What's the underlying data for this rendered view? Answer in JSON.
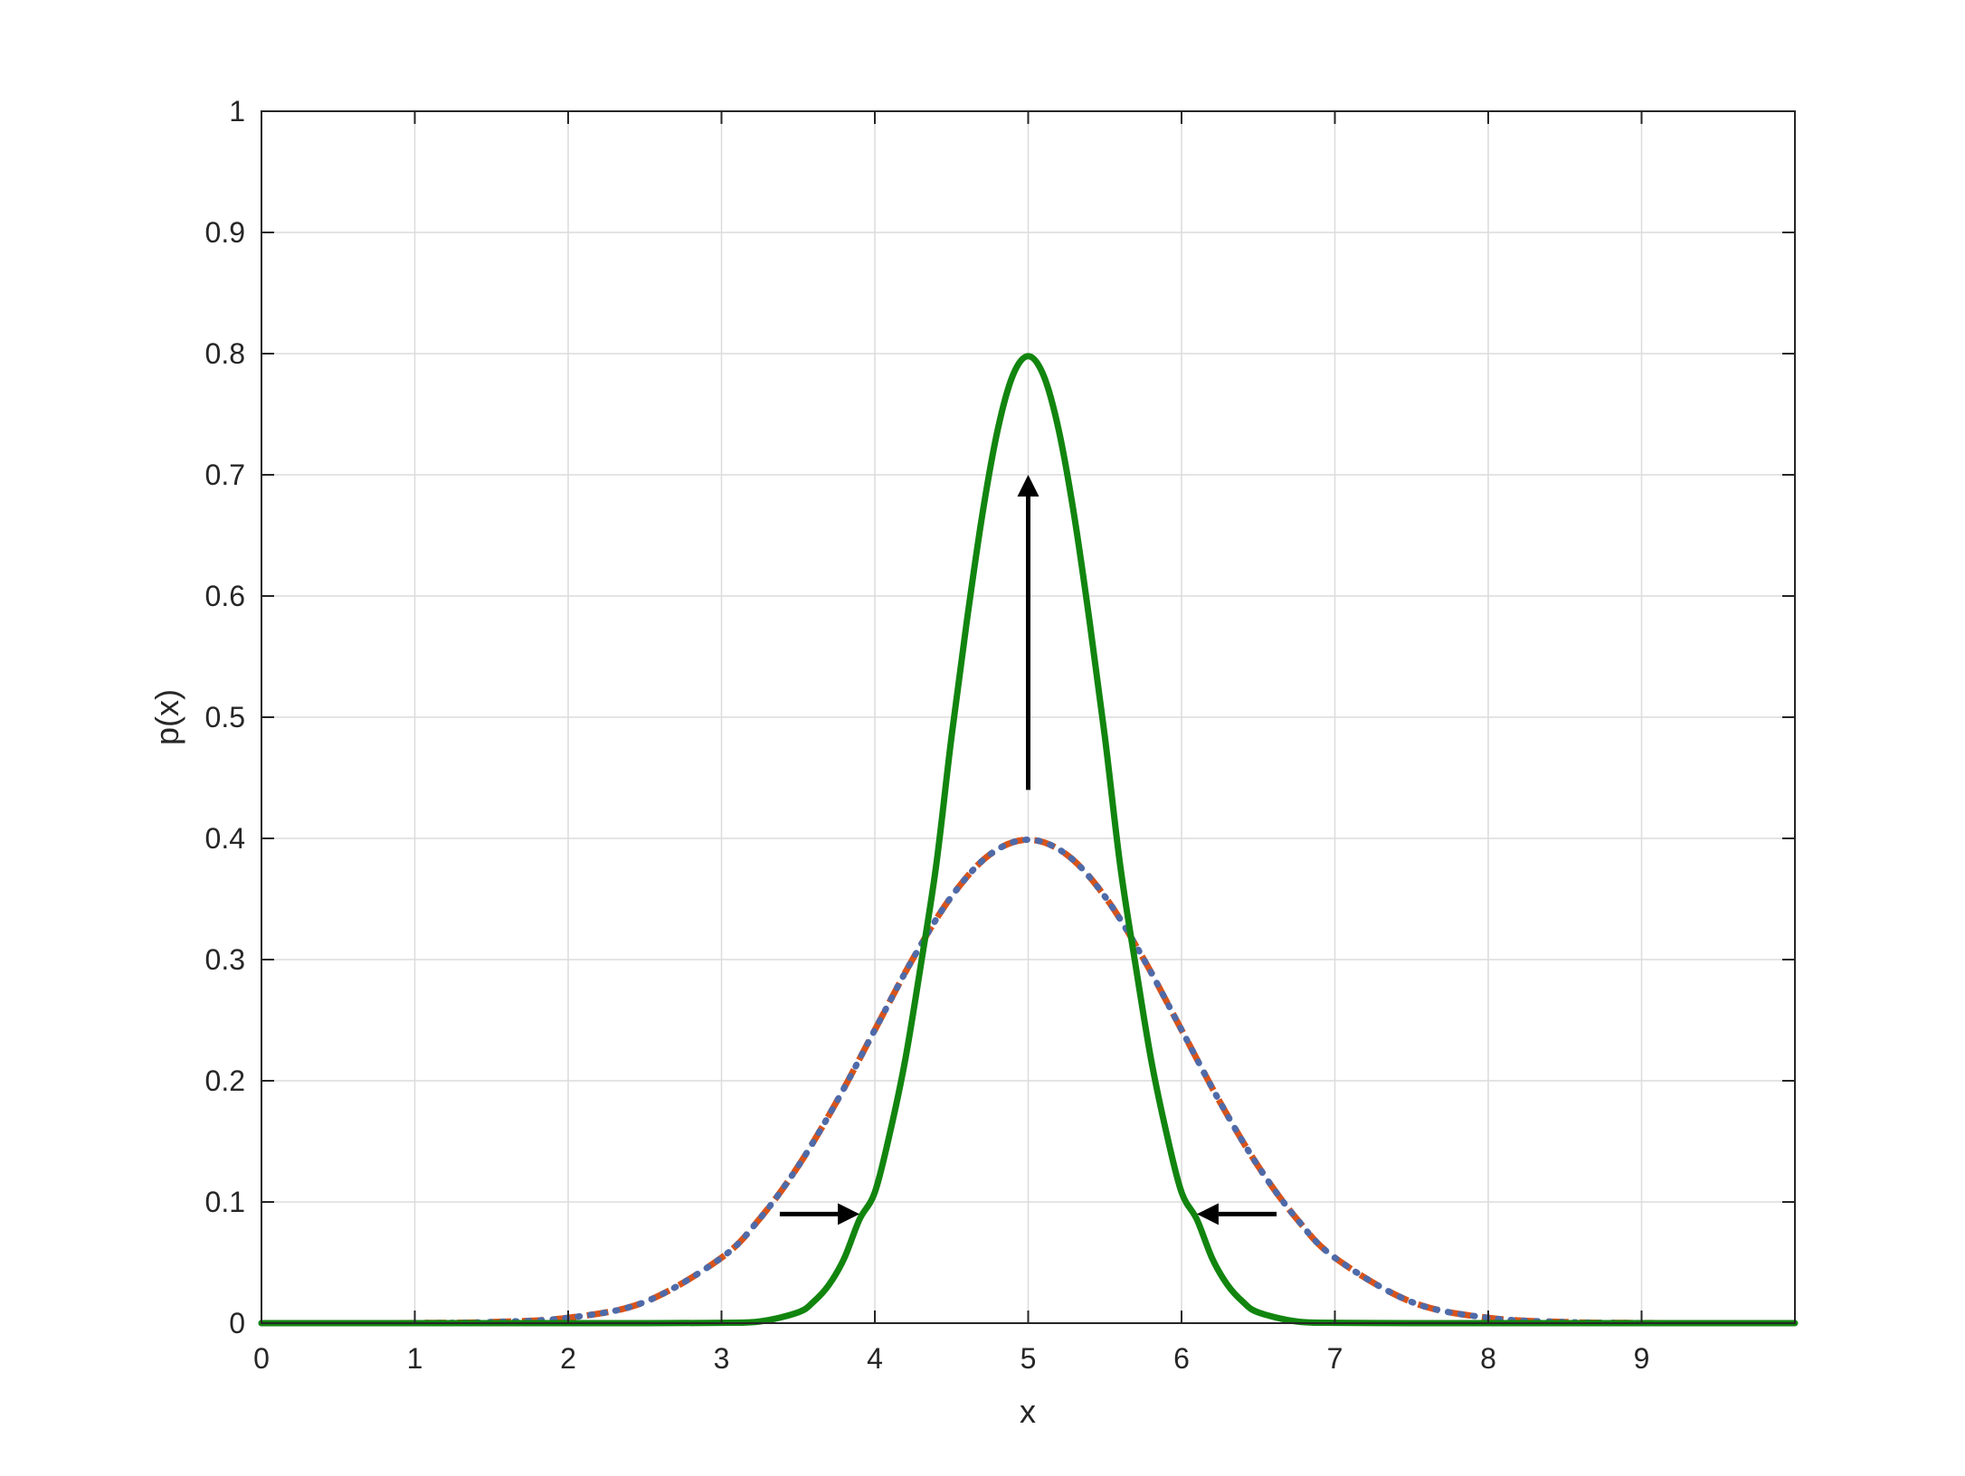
{
  "chart_data": {
    "type": "line",
    "title": "",
    "xlabel": "x",
    "ylabel": "p(x)",
    "xlim": [
      0,
      10
    ],
    "ylim": [
      0,
      1
    ],
    "xticks": [
      0,
      1,
      2,
      3,
      4,
      5,
      6,
      7,
      8,
      9
    ],
    "xtick_labels": [
      "0",
      "1",
      "2",
      "3",
      "4",
      "5",
      "6",
      "7",
      "8",
      "9"
    ],
    "yticks": [
      0,
      0.1,
      0.2,
      0.3,
      0.4,
      0.5,
      0.6,
      0.7,
      0.8,
      0.9,
      1
    ],
    "ytick_labels": [
      "0",
      "0.1",
      "0.2",
      "0.3",
      "0.4",
      "0.5",
      "0.6",
      "0.7",
      "0.8",
      "0.9",
      "1"
    ],
    "grid": true,
    "series": [
      {
        "color": "#D95319",
        "style": "dashed",
        "x": [
          0,
          0.5,
          1,
          1.5,
          2,
          2.5,
          3,
          3.25,
          3.5,
          3.75,
          4,
          4.25,
          4.5,
          4.75,
          5,
          5.25,
          5.5,
          5.75,
          6,
          6.25,
          6.5,
          6.75,
          7,
          7.5,
          8,
          8.5,
          9,
          9.5,
          10
        ],
        "y": [
          0,
          0,
          0.0001,
          0.0009,
          0.0044,
          0.0175,
          0.054,
          0.0863,
          0.1295,
          0.1826,
          0.242,
          0.3011,
          0.3521,
          0.3867,
          0.3989,
          0.3867,
          0.3521,
          0.3011,
          0.242,
          0.1826,
          0.1295,
          0.0863,
          0.054,
          0.0175,
          0.0044,
          0.0009,
          0.0001,
          0,
          0
        ]
      },
      {
        "color": "#4F6AA8",
        "style": "dotted",
        "x": [
          0,
          0.5,
          1,
          1.5,
          2,
          2.5,
          3,
          3.25,
          3.5,
          3.75,
          4,
          4.25,
          4.5,
          4.75,
          5,
          5.25,
          5.5,
          5.75,
          6,
          6.25,
          6.5,
          6.75,
          7,
          7.5,
          8,
          8.5,
          9,
          9.5,
          10
        ],
        "y": [
          0,
          0,
          0.0001,
          0.0009,
          0.0044,
          0.0175,
          0.054,
          0.0863,
          0.1295,
          0.1826,
          0.242,
          0.3011,
          0.3521,
          0.3867,
          0.3989,
          0.3867,
          0.3521,
          0.3011,
          0.242,
          0.1826,
          0.1295,
          0.0863,
          0.054,
          0.0175,
          0.0044,
          0.0009,
          0.0001,
          0,
          0
        ]
      },
      {
        "color": "#12850F",
        "style": "solid",
        "x": [
          0,
          1,
          2,
          2.5,
          3,
          3.25,
          3.5,
          3.6,
          3.7,
          3.8,
          3.9,
          4,
          4.1,
          4.2,
          4.3,
          4.4,
          4.5,
          4.6,
          4.7,
          4.8,
          4.9,
          5,
          5.1,
          5.2,
          5.3,
          5.4,
          5.5,
          5.6,
          5.7,
          5.8,
          5.9,
          6,
          6.1,
          6.2,
          6.3,
          6.4,
          6.5,
          6.75,
          7,
          7.5,
          8,
          9,
          10
        ],
        "y": [
          0,
          0,
          0,
          0,
          0.0003,
          0.0014,
          0.0089,
          0.0176,
          0.0315,
          0.0534,
          0.0856,
          0.108,
          0.1579,
          0.2186,
          0.2956,
          0.3777,
          0.4839,
          0.5794,
          0.6664,
          0.7365,
          0.7821,
          0.7979,
          0.7821,
          0.7365,
          0.6664,
          0.5794,
          0.4839,
          0.3777,
          0.2956,
          0.2186,
          0.1579,
          0.108,
          0.0856,
          0.0534,
          0.0315,
          0.0176,
          0.0089,
          0.0014,
          0.0003,
          0,
          0,
          0,
          0
        ]
      }
    ],
    "annotations": [
      {
        "type": "arrow",
        "from": [
          5,
          0.44
        ],
        "to": [
          5,
          0.7
        ]
      },
      {
        "type": "arrow",
        "from": [
          3.38,
          0.09
        ],
        "to": [
          3.9,
          0.09
        ]
      },
      {
        "type": "arrow",
        "from": [
          6.62,
          0.09
        ],
        "to": [
          6.1,
          0.09
        ]
      }
    ]
  }
}
